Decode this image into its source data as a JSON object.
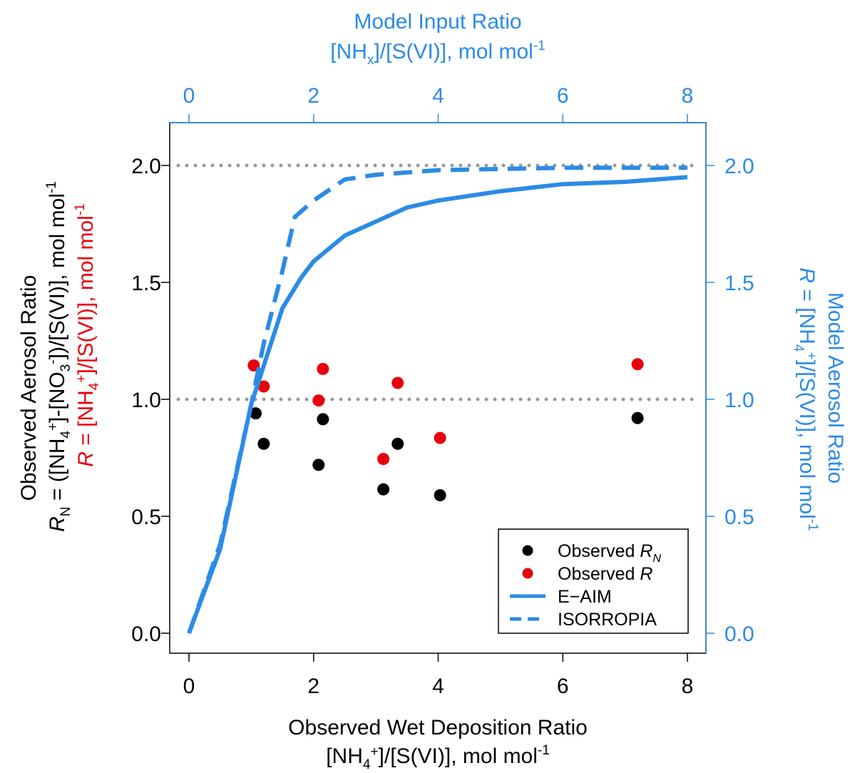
{
  "colors": {
    "black": "#000000",
    "red": "#e8000b",
    "model_blue": "#2b8be6",
    "ref_line_gray": "#999999"
  },
  "chart_data": {
    "type": "scatter",
    "bottom_axis": {
      "title": "Observed Wet Deposition Ratio",
      "unit_parts": [
        "[NH",
        "4",
        "+",
        "]/[S(VI)], mol mol",
        "-1"
      ],
      "range": [
        0,
        8
      ],
      "ticks": [
        0,
        2,
        4,
        6,
        8
      ]
    },
    "top_axis": {
      "title": "Model Input Ratio",
      "unit_parts": [
        "[NH",
        "x",
        "]/[S(VI)], mol mol",
        "-1"
      ],
      "range": [
        0,
        8
      ],
      "ticks": [
        0,
        2,
        4,
        6,
        8
      ]
    },
    "left_axis": {
      "title": "Observed Aerosol Ratio",
      "line2_parts": [
        "R",
        "N",
        " = ([NH",
        "4",
        "+",
        "]-[NO",
        "3",
        "-",
        "])/[S(VI)], mol mol",
        "-1"
      ],
      "line3_parts": [
        "R",
        " = [NH",
        "4",
        "+",
        "]/[S(VI)], mol mol",
        "-1"
      ],
      "range": [
        0,
        2.0
      ],
      "ticks": [
        "0.0",
        "0.5",
        "1.0",
        "1.5",
        "2.0"
      ]
    },
    "right_axis": {
      "title": "Model Aerosol Ratio",
      "line2_parts": [
        "R",
        " = [NH",
        "4",
        "+",
        "]/[S(VI)], mol mol",
        "-1"
      ],
      "range": [
        0,
        2.0
      ],
      "ticks": [
        "0.0",
        "0.5",
        "1.0",
        "1.5",
        "2.0"
      ]
    },
    "reference_lines": [
      1.0,
      2.0
    ],
    "legend": {
      "placement": "bottom-right",
      "items": [
        {
          "label": "Observed ",
          "italic": "R",
          "sub": "N",
          "kind": "point",
          "color": "#000000"
        },
        {
          "label": "Observed ",
          "italic": "R",
          "sub": "",
          "kind": "point",
          "color": "#e8000b"
        },
        {
          "label": "E−AIM",
          "italic": "",
          "sub": "",
          "kind": "solid",
          "color": "#2b8be6"
        },
        {
          "label": "ISORROPIA",
          "italic": "",
          "sub": "",
          "kind": "dashed",
          "color": "#2b8be6"
        }
      ]
    },
    "series": [
      {
        "name": "Observed R_N",
        "kind": "points",
        "color": "#000000",
        "points": [
          [
            1.07,
            0.94
          ],
          [
            1.2,
            0.81
          ],
          [
            2.08,
            0.72
          ],
          [
            2.15,
            0.915
          ],
          [
            3.12,
            0.615
          ],
          [
            3.35,
            0.81
          ],
          [
            4.03,
            0.59
          ],
          [
            7.2,
            0.92
          ]
        ]
      },
      {
        "name": "Observed R",
        "kind": "points",
        "color": "#e8000b",
        "points": [
          [
            1.04,
            1.145
          ],
          [
            1.2,
            1.055
          ],
          [
            2.08,
            0.995
          ],
          [
            2.15,
            1.13
          ],
          [
            3.12,
            0.745
          ],
          [
            3.35,
            1.07
          ],
          [
            4.03,
            0.835
          ],
          [
            7.2,
            1.15
          ]
        ]
      },
      {
        "name": "E-AIM",
        "kind": "solid",
        "color": "#2b8be6",
        "points": [
          [
            0,
            0
          ],
          [
            0.5,
            0.36
          ],
          [
            1.0,
            0.98
          ],
          [
            1.5,
            1.39
          ],
          [
            1.8,
            1.52
          ],
          [
            2.0,
            1.59
          ],
          [
            2.5,
            1.7
          ],
          [
            3.0,
            1.76
          ],
          [
            3.5,
            1.82
          ],
          [
            4.0,
            1.85
          ],
          [
            5.0,
            1.89
          ],
          [
            6.0,
            1.92
          ],
          [
            7.0,
            1.93
          ],
          [
            8.0,
            1.95
          ]
        ]
      },
      {
        "name": "ISORROPIA",
        "kind": "dashed",
        "color": "#2b8be6",
        "points": [
          [
            0,
            0
          ],
          [
            0.5,
            0.38
          ],
          [
            1.0,
            0.98
          ],
          [
            1.2,
            1.24
          ],
          [
            1.5,
            1.55
          ],
          [
            1.7,
            1.78
          ],
          [
            2.0,
            1.85
          ],
          [
            2.5,
            1.94
          ],
          [
            3.0,
            1.96
          ],
          [
            4.0,
            1.98
          ],
          [
            6.0,
            1.99
          ],
          [
            8.0,
            1.99
          ]
        ]
      }
    ]
  }
}
